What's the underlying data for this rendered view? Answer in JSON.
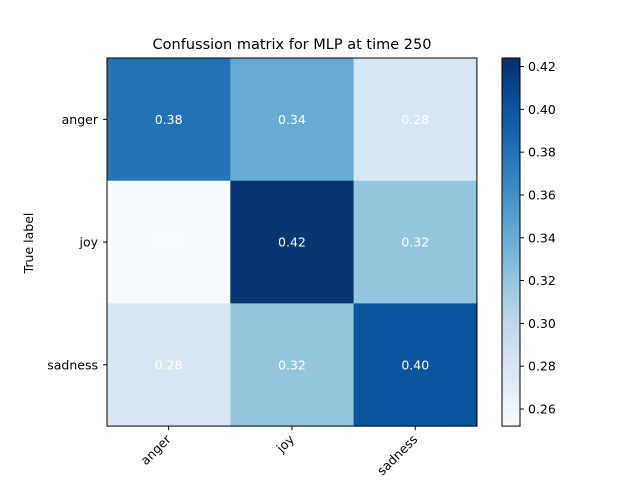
{
  "chart_data": {
    "type": "heatmap",
    "title": "Confussion matrix for MLP at time 250",
    "xlabel": "",
    "ylabel": "True label",
    "x_categories": [
      "anger",
      "joy",
      "sadness"
    ],
    "y_categories": [
      "anger",
      "joy",
      "sadness"
    ],
    "values": [
      [
        0.38,
        0.34,
        0.28
      ],
      [
        0.25,
        0.42,
        0.32
      ],
      [
        0.28,
        0.32,
        0.4
      ]
    ],
    "value_labels": [
      [
        "0.38",
        "0.34",
        "0.28"
      ],
      [
        "0.25",
        "0.42",
        "0.32"
      ],
      [
        "0.28",
        "0.32",
        "0.40"
      ]
    ],
    "colormap": "Blues",
    "colorbar": {
      "range": [
        0.252,
        0.424
      ],
      "ticks": [
        0.26,
        0.28,
        0.3,
        0.32,
        0.34,
        0.36,
        0.38,
        0.4,
        0.42
      ],
      "tick_labels": [
        "0.26",
        "0.28",
        "0.30",
        "0.32",
        "0.34",
        "0.36",
        "0.38",
        "0.40",
        "0.42"
      ]
    },
    "grid": false
  }
}
